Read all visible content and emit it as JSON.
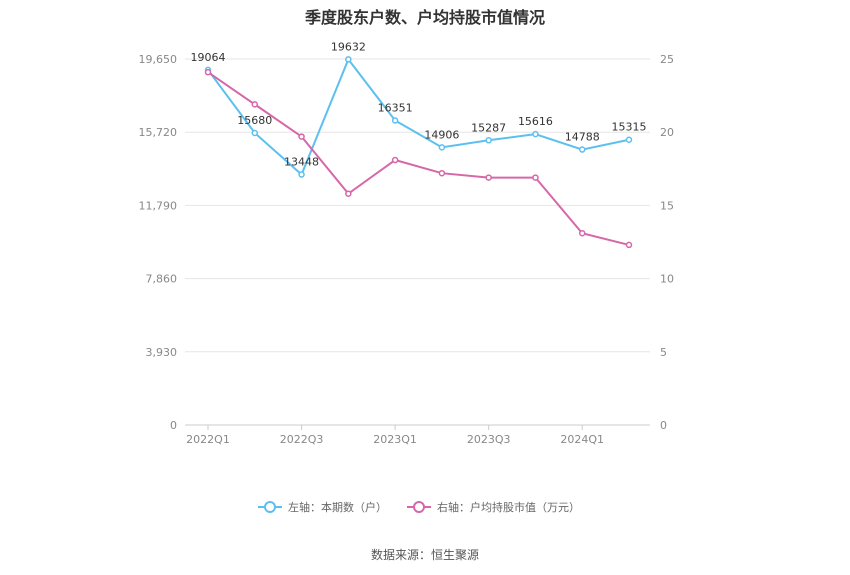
{
  "chart_data": {
    "type": "line",
    "title": "季度股东户数、户均持股市值情况",
    "source": "数据来源：恒生聚源",
    "x": [
      "2022Q1",
      "2022Q2",
      "2022Q3",
      "2022Q4",
      "2023Q1",
      "2023Q2",
      "2023Q3",
      "2023Q4",
      "2024Q1",
      "2024Q2"
    ],
    "x_tick_labels": [
      "2022Q1",
      "2022Q3",
      "2023Q1",
      "2023Q3",
      "2024Q1"
    ],
    "y_left": {
      "min": 0,
      "max": 19650,
      "ticks": [
        "0",
        "3,930",
        "7,860",
        "11,790",
        "15,720",
        "19,650"
      ]
    },
    "y_right": {
      "min": 0,
      "max": 25,
      "ticks": [
        "0",
        "5",
        "10",
        "15",
        "20",
        "25"
      ]
    },
    "series": [
      {
        "name": "左轴：本期数（户）",
        "axis": "left",
        "color": "#5bc0f0",
        "values": [
          19064,
          15680,
          13448,
          19632,
          16351,
          14906,
          15287,
          15616,
          14788,
          15315
        ],
        "labels": [
          "19064",
          "15680",
          "13448",
          "19632",
          "16351",
          "14906",
          "15287",
          "15616",
          "14788",
          "15315"
        ]
      },
      {
        "name": "右轴：户均持股市值（万元）",
        "axis": "right",
        "color": "#d667a8",
        "values": [
          24.1,
          21.9,
          19.7,
          15.8,
          18.1,
          17.2,
          16.9,
          16.9,
          13.1,
          12.3
        ]
      }
    ],
    "grid": true,
    "legend_position": "bottom-center"
  }
}
